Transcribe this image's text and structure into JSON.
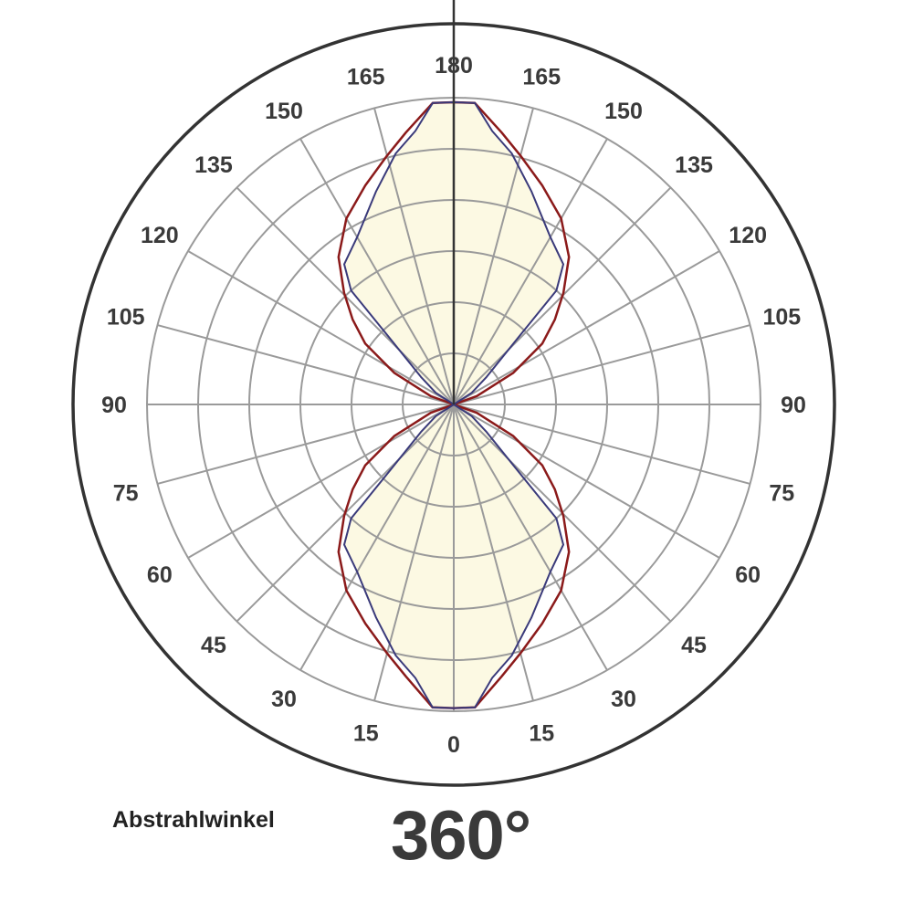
{
  "chart_data": {
    "type": "polar",
    "title": "",
    "angle_unit": "degrees",
    "angle_labels": [
      "0",
      "15",
      "30",
      "45",
      "60",
      "75",
      "90",
      "105",
      "120",
      "135",
      "150",
      "165",
      "180"
    ],
    "angular_grid_step": 15,
    "radial_rings": 6,
    "radial_range": [
      0,
      1
    ],
    "grid": true,
    "symmetry": "mirrored left/right",
    "colors": {
      "curve_1": "#8b1a1a",
      "curve_2": "#3a3a7a",
      "fill": "#fcf9e3",
      "grid": "#9a9a9a",
      "frame": "#333333"
    },
    "series": [
      {
        "points": [
          [
            0,
            0.99
          ],
          [
            4,
            0.99
          ],
          [
            10,
            0.9
          ],
          [
            15,
            0.84
          ],
          [
            22,
            0.77
          ],
          [
            30,
            0.7
          ],
          [
            38,
            0.61
          ],
          [
            44.5,
            0.51
          ],
          [
            50,
            0.43
          ],
          [
            55.5,
            0.35
          ],
          [
            62,
            0.22
          ],
          [
            70,
            0.08
          ],
          [
            90,
            0
          ],
          [
            110,
            0.08
          ],
          [
            118,
            0.22
          ],
          [
            124.5,
            0.35
          ],
          [
            130,
            0.43
          ],
          [
            135.5,
            0.51
          ],
          [
            142,
            0.61
          ],
          [
            150,
            0.7
          ],
          [
            158,
            0.77
          ],
          [
            165,
            0.84
          ],
          [
            170,
            0.9
          ],
          [
            176,
            0.985
          ],
          [
            180,
            0.985
          ]
        ]
      },
      {
        "points": [
          [
            0,
            0.99
          ],
          [
            4,
            0.99
          ],
          [
            8,
            0.9
          ],
          [
            13,
            0.84
          ],
          [
            20,
            0.74
          ],
          [
            30,
            0.63
          ],
          [
            38,
            0.58
          ],
          [
            42,
            0.5
          ],
          [
            44,
            0.3
          ],
          [
            50,
            0.14
          ],
          [
            57,
            0.07
          ],
          [
            90,
            0
          ],
          [
            123,
            0.07
          ],
          [
            130,
            0.14
          ],
          [
            136,
            0.3
          ],
          [
            138,
            0.5
          ],
          [
            142,
            0.58
          ],
          [
            150,
            0.63
          ],
          [
            160,
            0.74
          ],
          [
            167,
            0.84
          ],
          [
            172,
            0.9
          ],
          [
            176,
            0.985
          ],
          [
            180,
            0.985
          ]
        ]
      }
    ]
  },
  "footer": {
    "caption": "Abstrahlwinkel",
    "beam_angle": "360°"
  }
}
